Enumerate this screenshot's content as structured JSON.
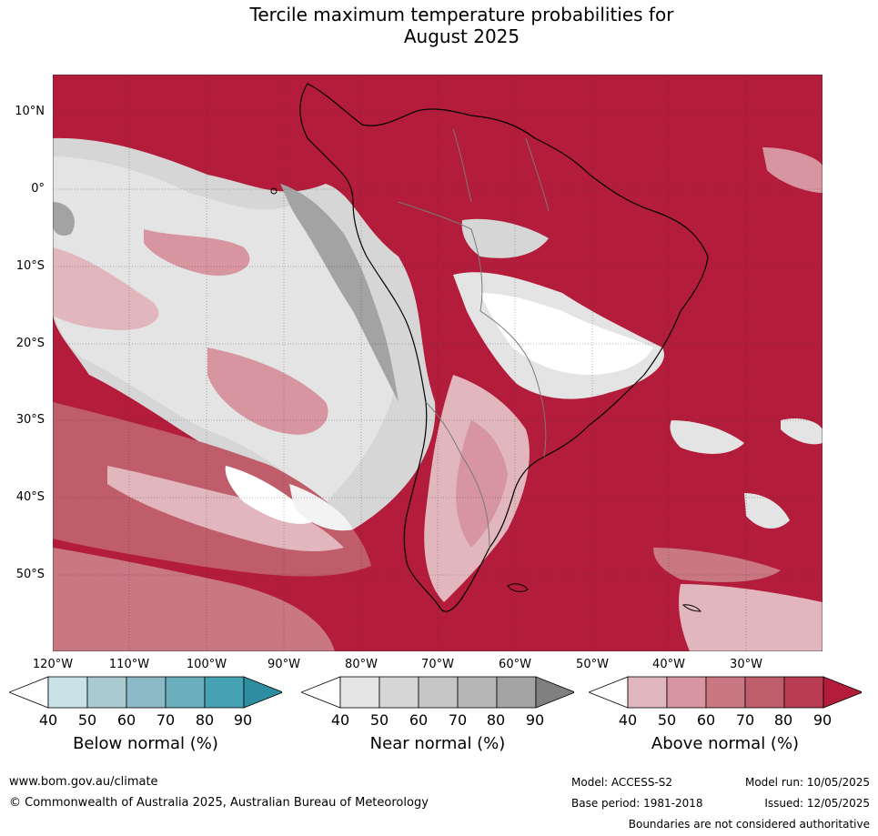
{
  "title_line1": "Tercile maximum temperature probabilities for",
  "title_line2": "August 2025",
  "lat_labels": [
    "10°N",
    "0°",
    "10°S",
    "20°S",
    "30°S",
    "40°S",
    "50°S"
  ],
  "lon_labels": [
    "120°W",
    "110°W",
    "100°W",
    "90°W",
    "80°W",
    "70°W",
    "60°W",
    "50°W",
    "40°W",
    "30°W"
  ],
  "legend": {
    "below": {
      "title": "Below normal (%)",
      "ticks": [
        "40",
        "50",
        "60",
        "70",
        "80",
        "90"
      ],
      "colors": [
        "#ffffff",
        "#c9e2e8",
        "#a9cad1",
        "#8bb9c5",
        "#6aaebd",
        "#46a2b2",
        "#2e8da0"
      ]
    },
    "near": {
      "title": "Near normal (%)",
      "ticks": [
        "40",
        "50",
        "60",
        "70",
        "80",
        "90"
      ],
      "colors": [
        "#ffffff",
        "#e4e4e4",
        "#d6d6d6",
        "#c6c6c6",
        "#b6b6b6",
        "#a3a3a3",
        "#808080"
      ]
    },
    "above": {
      "title": "Above normal (%)",
      "ticks": [
        "40",
        "50",
        "60",
        "70",
        "80",
        "90"
      ],
      "colors": [
        "#ffffff",
        "#e2b6bd",
        "#d6959f",
        "#c97783",
        "#c05d6b",
        "#b93c52",
        "#b31c3a"
      ]
    }
  },
  "footer": {
    "website": "www.bom.gov.au/climate",
    "copyright": "© Commonwealth of Australia 2025, Australian Bureau of Meteorology",
    "model": "Model: ACCESS-S2",
    "base_period": "Base period: 1981-2018",
    "model_run": "Model run: 10/05/2025",
    "issued": "Issued: 12/05/2025",
    "disclaimer": "Boundaries are not considered authoritative"
  }
}
